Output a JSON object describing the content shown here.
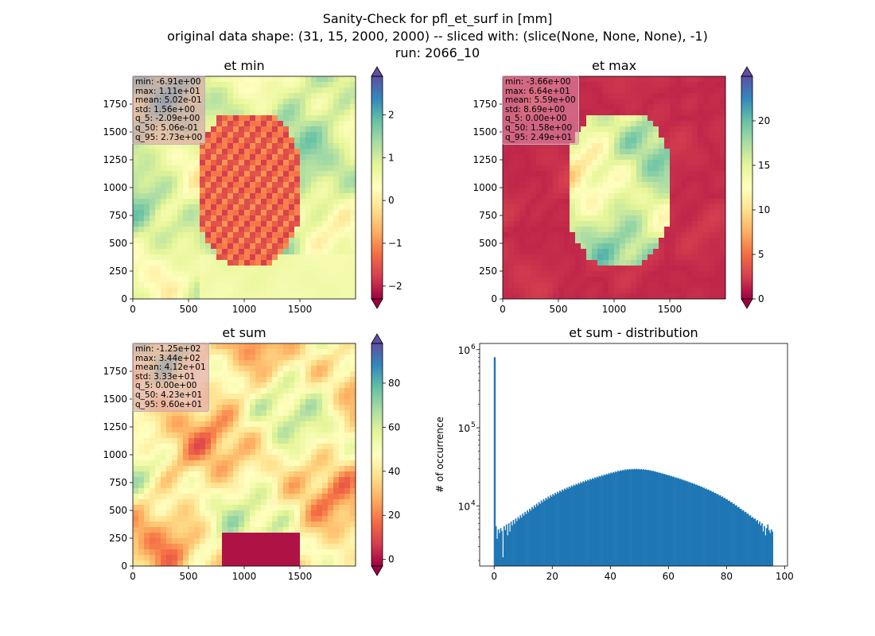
{
  "figure": {
    "title_lines": [
      "Sanity-Check for pfl_et_surf in [mm]",
      "original data shape: (31, 15, 2000, 2000) -- sliced with: (slice(None, None, None), -1)",
      "run: 2066_10"
    ]
  },
  "colors": {
    "colormap": [
      "#9e0142",
      "#d53e4f",
      "#f46d43",
      "#fdae61",
      "#fee08b",
      "#ffffbf",
      "#e6f598",
      "#abdda4",
      "#66c2a5",
      "#3288bd",
      "#5e4fa2"
    ],
    "hist_bar": "#1f77b4"
  },
  "chart_data": [
    {
      "type": "heatmap",
      "title": "et min",
      "xlim": [
        0,
        2000
      ],
      "ylim": [
        0,
        2000
      ],
      "xticks": [
        0,
        500,
        1000,
        1500
      ],
      "yticks": [
        0,
        250,
        500,
        750,
        1000,
        1250,
        1500,
        1750
      ],
      "colorbar": {
        "range": [
          -2.3,
          2.9
        ],
        "ticks": [
          -2,
          -1,
          0,
          1,
          2
        ],
        "tick_labels": [
          "−2",
          "−1",
          "0",
          "1",
          "2"
        ],
        "extend": "both"
      },
      "stats": [
        "min: -6.91e+00",
        "max: 1.11e+01",
        "mean: 5.02e-01",
        "std: 1.56e+00",
        "q_5: -2.09e+00",
        "q_50: 5.06e-01",
        "q_95: 2.73e+00"
      ]
    },
    {
      "type": "heatmap",
      "title": "et max",
      "xlim": [
        0,
        2000
      ],
      "ylim": [
        0,
        2000
      ],
      "xticks": [
        0,
        500,
        1000,
        1500
      ],
      "yticks": [
        0,
        250,
        500,
        750,
        1000,
        1250,
        1500,
        1750
      ],
      "colorbar": {
        "range": [
          0,
          25
        ],
        "ticks": [
          0,
          5,
          10,
          15,
          20
        ],
        "tick_labels": [
          "0",
          "5",
          "10",
          "15",
          "20"
        ],
        "extend": "both"
      },
      "stats": [
        "min: -3.66e+00",
        "max: 6.64e+01",
        "mean: 5.59e+00",
        "std: 8.69e+00",
        "q_5: 0.00e+00",
        "q_50: 1.58e+00",
        "q_95: 2.49e+01"
      ]
    },
    {
      "type": "heatmap",
      "title": "et sum",
      "xlim": [
        0,
        2000
      ],
      "ylim": [
        0,
        2000
      ],
      "xticks": [
        0,
        500,
        1000,
        1500
      ],
      "yticks": [
        0,
        250,
        500,
        750,
        1000,
        1250,
        1500,
        1750
      ],
      "colorbar": {
        "range": [
          -3,
          98
        ],
        "ticks": [
          0,
          20,
          40,
          60,
          80
        ],
        "tick_labels": [
          "0",
          "20",
          "40",
          "60",
          "80"
        ],
        "extend": "both"
      },
      "stats": [
        "min: -1.25e+02",
        "max: 3.44e+02",
        "mean: 4.12e+01",
        "std: 3.33e+01",
        "q_5: 0.00e+00",
        "q_50: 4.23e+01",
        "q_95: 9.60e+01"
      ]
    },
    {
      "type": "bar",
      "title": "et sum - distribution",
      "ylabel": "# of occurrence",
      "xlabel": "",
      "xlim": [
        -5,
        101
      ],
      "ylim": [
        1700,
        1200000
      ],
      "yscale": "log",
      "xticks": [
        0,
        20,
        40,
        60,
        80,
        100
      ],
      "ytick_labels": [
        {
          "value": 10000,
          "base": "10",
          "exp": "4"
        },
        {
          "value": 100000,
          "base": "10",
          "exp": "5"
        },
        {
          "value": 1000000,
          "base": "10",
          "exp": "6"
        }
      ],
      "bin_range": [
        0,
        96
      ],
      "outlier_bar": {
        "x": 0,
        "value": 800000
      },
      "bin_values": [
        3000,
        5500,
        3800,
        5000,
        4500,
        5200,
        4800,
        2200,
        5500,
        4900,
        5800,
        4200,
        6000,
        4700,
        6300,
        5600,
        6600,
        5900,
        6900,
        6400,
        7200,
        6800,
        7600,
        7100,
        8000,
        7500,
        8400,
        7900,
        8800,
        8300,
        9200,
        8700,
        9700,
        9200,
        10200,
        9600,
        10700,
        10100,
        11200,
        10600,
        11700,
        11100,
        12200,
        11600,
        12700,
        12100,
        13200,
        12600,
        13700,
        13100,
        14200,
        13600,
        14700,
        14100,
        15200,
        14600,
        15700,
        15100,
        16200,
        15600,
        16700,
        16100,
        17200,
        16600,
        17700,
        17100,
        18200,
        17600,
        18700,
        18100,
        19200,
        18600,
        19700,
        19100,
        20200,
        19600,
        20700,
        20100,
        21200,
        20600,
        21700,
        21100,
        22200,
        21600,
        22700,
        22100,
        23200,
        22600,
        23700,
        23100,
        24200,
        23600,
        24700,
        24100,
        25200,
        24600,
        25700,
        25100,
        26200,
        25600,
        26700,
        26100,
        27200,
        26600,
        27700,
        27100,
        28200,
        27600,
        28600,
        28000,
        29000,
        28400,
        29300,
        28700,
        29500,
        29000,
        29700,
        29100,
        29800,
        29200,
        29900,
        29300,
        29900,
        29300,
        29800,
        29200,
        29700,
        29100,
        29500,
        28900,
        29300,
        28700,
        29000,
        28400,
        28600,
        28000,
        28200,
        27600,
        27700,
        27100,
        27200,
        26600,
        26700,
        26100,
        26200,
        25600,
        25700,
        25100,
        25200,
        24600,
        24700,
        24100,
        24200,
        23600,
        23700,
        23100,
        23200,
        22600,
        22700,
        22100,
        22200,
        21600,
        21700,
        21100,
        21200,
        20600,
        20700,
        20100,
        20200,
        19600,
        19700,
        19100,
        19200,
        18600,
        18700,
        18100,
        18200,
        17600,
        17700,
        17100,
        17200,
        16600,
        16700,
        16100,
        16200,
        15600,
        15700,
        15100,
        15200,
        14600,
        14700,
        14100,
        14200,
        13600,
        13700,
        13100,
        13200,
        12600,
        12700,
        12100,
        12200,
        11600,
        11700,
        11100,
        11200,
        10600,
        10700,
        10100,
        10200,
        9600,
        9700,
        9200,
        9200,
        8700,
        8800,
        8300,
        8400,
        7900,
        8000,
        7500,
        7600,
        7100,
        7200,
        6800,
        6900,
        6400,
        6600,
        5900,
        6300,
        5600,
        6000,
        4700,
        5500,
        4200,
        5200,
        5800,
        4900,
        4500,
        5000,
        4700
      ]
    }
  ]
}
